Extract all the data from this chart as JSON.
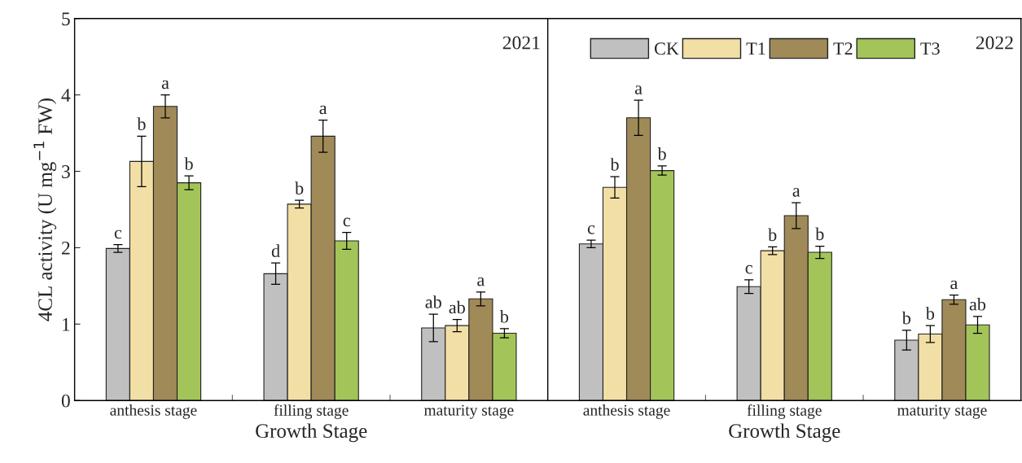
{
  "chart_data": [
    {
      "type": "bar",
      "ylabel": "4CL activity (U mg$^{−1}$ FW)",
      "xlabel": "Growth Stage",
      "annotations": [
        "2021"
      ],
      "categories": [
        "anthesis stage",
        "filling stage",
        "maturity stage"
      ],
      "ylim": [
        0,
        5
      ],
      "yticks": [
        0,
        1,
        2,
        3,
        4,
        5
      ],
      "grid": false,
      "series": [
        {
          "color": "#c0c0c0",
          "values": [
            1.99,
            1.66,
            0.95
          ],
          "errors": [
            0.05,
            0.14,
            0.18
          ],
          "value_labels": [
            "c",
            "d",
            "ab"
          ]
        },
        {
          "color": "#f2dfa6",
          "values": [
            3.13,
            2.57,
            0.98
          ],
          "errors": [
            0.33,
            0.05,
            0.08
          ],
          "value_labels": [
            "b",
            "b",
            "ab"
          ]
        },
        {
          "color": "#a08a58",
          "values": [
            3.85,
            3.46,
            1.33
          ],
          "errors": [
            0.15,
            0.21,
            0.09
          ],
          "value_labels": [
            "a",
            "a",
            "a"
          ]
        },
        {
          "color": "#a3c458",
          "values": [
            2.85,
            2.09,
            0.88
          ],
          "errors": [
            0.09,
            0.11,
            0.06
          ],
          "value_labels": [
            "b",
            "c",
            "b"
          ]
        }
      ]
    },
    {
      "type": "bar",
      "xlabel": "Growth Stage",
      "annotations": [
        "2022"
      ],
      "categories": [
        "anthesis stage",
        "filling stage",
        "maturity stage"
      ],
      "ylim": [
        0,
        5
      ],
      "tick_labels": "x",
      "legend": "top",
      "grid": false,
      "series": [
        {
          "name": "CK",
          "color": "#c0c0c0",
          "values": [
            2.05,
            1.49,
            0.79
          ],
          "errors": [
            0.05,
            0.09,
            0.13
          ],
          "value_labels": [
            "c",
            "c",
            "b"
          ]
        },
        {
          "name": "T1",
          "color": "#f2dfa6",
          "values": [
            2.79,
            1.96,
            0.87
          ],
          "errors": [
            0.14,
            0.05,
            0.11
          ],
          "value_labels": [
            "b",
            "b",
            "b"
          ]
        },
        {
          "name": "T2",
          "color": "#a08a58",
          "values": [
            3.7,
            2.42,
            1.32
          ],
          "errors": [
            0.23,
            0.17,
            0.06
          ],
          "value_labels": [
            "a",
            "a",
            "a"
          ]
        },
        {
          "name": "T3",
          "color": "#a3c458",
          "values": [
            3.01,
            1.94,
            0.99
          ],
          "errors": [
            0.06,
            0.08,
            0.11
          ],
          "value_labels": [
            "b",
            "b",
            "ab"
          ]
        }
      ]
    }
  ]
}
